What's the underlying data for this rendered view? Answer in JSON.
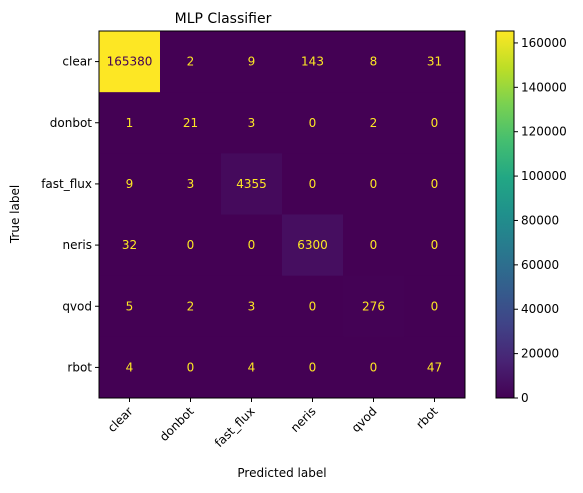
{
  "chart_data": {
    "type": "heatmap",
    "title": "MLP Classifier",
    "xlabel": "Predicted label",
    "ylabel": "True label",
    "x_categories": [
      "clear",
      "donbot",
      "fast_flux",
      "neris",
      "qvod",
      "rbot"
    ],
    "y_categories": [
      "clear",
      "donbot",
      "fast_flux",
      "neris",
      "qvod",
      "rbot"
    ],
    "matrix": [
      [
        165380,
        2,
        9,
        143,
        8,
        31
      ],
      [
        1,
        21,
        3,
        0,
        2,
        0
      ],
      [
        9,
        3,
        4355,
        0,
        0,
        0
      ],
      [
        32,
        0,
        0,
        6300,
        0,
        0
      ],
      [
        5,
        2,
        3,
        0,
        276,
        0
      ],
      [
        4,
        0,
        4,
        0,
        0,
        47
      ]
    ],
    "colormap": "viridis",
    "colorbar": {
      "min": 0,
      "max": 165380,
      "ticks": [
        0,
        20000,
        40000,
        60000,
        80000,
        100000,
        120000,
        140000,
        160000
      ]
    },
    "grid": false
  }
}
